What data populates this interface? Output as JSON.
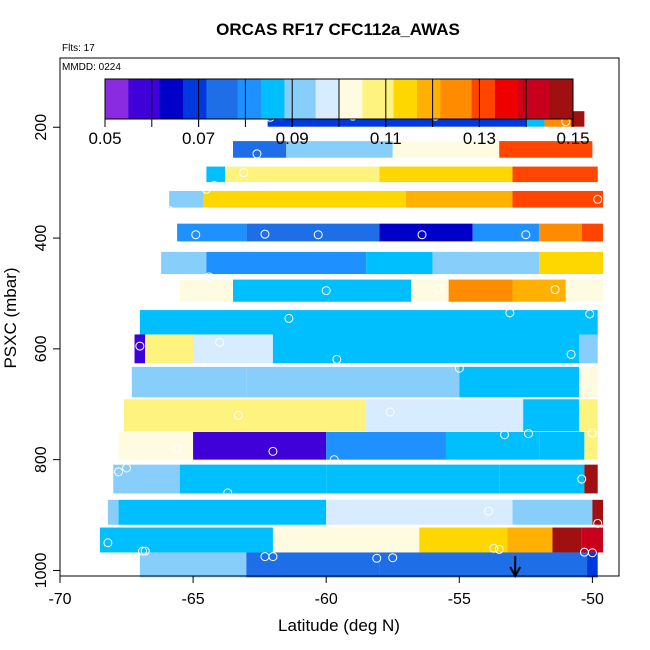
{
  "chart_data": {
    "type": "heatmap",
    "title": "ORCAS RF17 CFC112a_AWAS",
    "subtitle_flts": "Flts: 17",
    "subtitle_mmdd": "MMDD: 0224",
    "xlabel": "Latitude (deg N)",
    "ylabel": "PSXC (mbar)",
    "xlim": [
      -70,
      -49
    ],
    "ylim": [
      1010,
      75
    ],
    "y_reversed": true,
    "x_ticks": [
      -70,
      -65,
      -60,
      -55,
      -50
    ],
    "x_tick_labels": [
      "-70",
      "-65",
      "-60",
      "-55",
      "-50"
    ],
    "y_ticks": [
      200,
      400,
      600,
      800,
      1000
    ],
    "y_tick_labels": [
      "200",
      "400",
      "600",
      "800",
      "1000"
    ],
    "colorbar": {
      "min": 0.05,
      "max": 0.15,
      "ticks": [
        0.05,
        0.07,
        0.09,
        0.11,
        0.13,
        0.15
      ],
      "tick_labels": [
        "0.05",
        "0.07",
        "0.09",
        "0.11",
        "0.13",
        "0.15"
      ],
      "colors": [
        "#8a2be2",
        "#4000d8",
        "#0000c8",
        "#0038e0",
        "#1e6ee8",
        "#1e90ff",
        "#00bfff",
        "#87cefa",
        "#d8ecff",
        "#fffbe0",
        "#fff380",
        "#ffd700",
        "#ffb000",
        "#ff8c00",
        "#ff4500",
        "#ee0000",
        "#c8001e",
        "#a01010"
      ]
    },
    "arrow_marker": {
      "x": -52.9,
      "label": "↓"
    },
    "bands": [
      {
        "p": 185,
        "h": 28,
        "segments": [
          [
            -62.2,
            -52.5,
            0.069
          ],
          [
            -52.5,
            -51.8,
            0.088
          ],
          [
            -51.8,
            -50.8,
            0.125
          ],
          [
            -50.8,
            -50.3,
            0.145
          ]
        ]
      },
      {
        "p": 240,
        "h": 30,
        "segments": [
          [
            -63.5,
            -61.5,
            0.075
          ],
          [
            -61.5,
            -57.5,
            0.093
          ],
          [
            -57.5,
            -53.5,
            0.105
          ],
          [
            -53.5,
            -50.0,
            0.133
          ]
        ]
      },
      {
        "p": 285,
        "h": 28,
        "segments": [
          [
            -64.5,
            -63.8,
            0.088
          ],
          [
            -63.8,
            -58.0,
            0.108
          ],
          [
            -58.0,
            -53.0,
            0.113
          ],
          [
            -53.0,
            -49.8,
            0.13
          ]
        ]
      },
      {
        "p": 330,
        "h": 30,
        "segments": [
          [
            -65.9,
            -64.6,
            0.09
          ],
          [
            -64.6,
            -57.0,
            0.116
          ],
          [
            -57.0,
            -53.0,
            0.12
          ],
          [
            -53.0,
            -49.6,
            0.132
          ]
        ]
      },
      {
        "p": 390,
        "h": 32,
        "segments": [
          [
            -65.6,
            -63.0,
            0.082
          ],
          [
            -63.0,
            -58.0,
            0.074
          ],
          [
            -58.0,
            -54.5,
            0.066
          ],
          [
            -54.5,
            -52.0,
            0.082
          ],
          [
            -52.0,
            -50.4,
            0.126
          ],
          [
            -50.4,
            -49.6,
            0.13
          ]
        ]
      },
      {
        "p": 445,
        "h": 40,
        "segments": [
          [
            -66.2,
            -64.5,
            0.094
          ],
          [
            -64.5,
            -58.5,
            0.078
          ],
          [
            -58.5,
            -56.0,
            0.087
          ],
          [
            -56.0,
            -52.0,
            0.094
          ],
          [
            -52.0,
            -49.6,
            0.112
          ]
        ]
      },
      {
        "p": 495,
        "h": 40,
        "segments": [
          [
            -65.5,
            -63.5,
            0.105
          ],
          [
            -63.5,
            -56.8,
            0.085
          ],
          [
            -56.8,
            -55.4,
            0.1
          ],
          [
            -55.4,
            -53.0,
            0.127
          ],
          [
            -53.0,
            -51.0,
            0.12
          ],
          [
            -51.0,
            -49.6,
            0.1
          ]
        ]
      },
      {
        "p": 555,
        "h": 50,
        "segments": [
          [
            -67.0,
            -49.8,
            0.085
          ]
        ]
      },
      {
        "p": 600,
        "h": 52,
        "segments": [
          [
            -67.2,
            -66.8,
            0.06
          ],
          [
            -66.8,
            -65.0,
            0.11
          ],
          [
            -65.0,
            -62.0,
            0.095
          ],
          [
            -62.0,
            -50.5,
            0.085
          ],
          [
            -50.5,
            -49.8,
            0.092
          ]
        ]
      },
      {
        "p": 660,
        "h": 55,
        "segments": [
          [
            -67.3,
            -63.0,
            0.09
          ],
          [
            -63.0,
            -55.0,
            0.094
          ],
          [
            -55.0,
            -50.5,
            0.085
          ],
          [
            -50.5,
            -49.8,
            0.1
          ]
        ]
      },
      {
        "p": 720,
        "h": 58,
        "segments": [
          [
            -67.6,
            -58.5,
            0.11
          ],
          [
            -58.5,
            -52.6,
            0.098
          ],
          [
            -52.6,
            -50.5,
            0.085
          ],
          [
            -50.5,
            -49.8,
            0.11
          ]
        ]
      },
      {
        "p": 775,
        "h": 50,
        "segments": [
          [
            -67.8,
            -65.0,
            0.1
          ],
          [
            -65.0,
            -60.0,
            0.06
          ],
          [
            -60.0,
            -55.5,
            0.08
          ],
          [
            -55.5,
            -52.0,
            0.085
          ],
          [
            -52.0,
            -50.3,
            0.085
          ],
          [
            -50.3,
            -49.8,
            0.11
          ]
        ]
      },
      {
        "p": 835,
        "h": 52,
        "segments": [
          [
            -68.0,
            -65.5,
            0.092
          ],
          [
            -65.5,
            -60.0,
            0.084
          ],
          [
            -60.0,
            -53.5,
            0.086
          ],
          [
            -53.5,
            -50.3,
            0.085
          ],
          [
            -50.3,
            -49.8,
            0.145
          ]
        ]
      },
      {
        "p": 895,
        "h": 45,
        "segments": [
          [
            -68.2,
            -67.8,
            0.09
          ],
          [
            -67.8,
            -60.0,
            0.085
          ],
          [
            -60.0,
            -53.0,
            0.095
          ],
          [
            -53.0,
            -50.0,
            0.09
          ],
          [
            -50.0,
            -49.6,
            0.145
          ]
        ]
      },
      {
        "p": 945,
        "h": 45,
        "segments": [
          [
            -68.5,
            -62.0,
            0.086
          ],
          [
            -62.0,
            -56.5,
            0.102
          ],
          [
            -56.5,
            -53.2,
            0.116
          ],
          [
            -53.2,
            -51.5,
            0.12
          ],
          [
            -51.5,
            -50.4,
            0.145
          ],
          [
            -50.4,
            -49.6,
            0.14
          ]
        ]
      },
      {
        "p": 990,
        "h": 45,
        "segments": [
          [
            -67.0,
            -63.0,
            0.09
          ],
          [
            -63.0,
            -58.0,
            0.077
          ],
          [
            -58.0,
            -53.0,
            0.074
          ],
          [
            -53.0,
            -50.2,
            0.075
          ],
          [
            -50.2,
            -49.8,
            0.07
          ]
        ]
      }
    ],
    "points": [
      [
        -62.1,
        182
      ],
      [
        -59.0,
        180
      ],
      [
        -55.9,
        180
      ],
      [
        -51.0,
        190
      ],
      [
        -62.6,
        248
      ],
      [
        -63.1,
        282
      ],
      [
        -65.9,
        350
      ],
      [
        -64.5,
        312
      ],
      [
        -64.2,
        305
      ],
      [
        -49.8,
        330
      ],
      [
        -62.3,
        393
      ],
      [
        -64.9,
        394
      ],
      [
        -60.3,
        394
      ],
      [
        -56.4,
        394
      ],
      [
        -52.5,
        394
      ],
      [
        -65.4,
        415
      ],
      [
        -64.4,
        470
      ],
      [
        -60.0,
        495
      ],
      [
        -55.8,
        492
      ],
      [
        -51.4,
        493
      ],
      [
        -61.4,
        545
      ],
      [
        -53.1,
        535
      ],
      [
        -50.1,
        537
      ],
      [
        -67.0,
        595
      ],
      [
        -64.0,
        588
      ],
      [
        -50.8,
        610
      ],
      [
        -59.6,
        619
      ],
      [
        -55.0,
        635
      ],
      [
        -63.3,
        720
      ],
      [
        -57.6,
        714
      ],
      [
        -53.3,
        755
      ],
      [
        -52.4,
        753
      ],
      [
        -50.0,
        752
      ],
      [
        -65.6,
        780
      ],
      [
        -62.0,
        785
      ],
      [
        -59.7,
        800
      ],
      [
        -67.5,
        815
      ],
      [
        -67.8,
        822
      ],
      [
        -63.7,
        860
      ],
      [
        -50.4,
        835
      ],
      [
        -53.9,
        893
      ],
      [
        -49.8,
        915
      ],
      [
        -68.2,
        950
      ],
      [
        -66.8,
        965
      ],
      [
        -66.9,
        965
      ],
      [
        -62.3,
        975
      ],
      [
        -62.0,
        975
      ],
      [
        -58.1,
        978
      ],
      [
        -57.5,
        977
      ],
      [
        -53.7,
        960
      ],
      [
        -53.5,
        962
      ],
      [
        -50.3,
        967
      ],
      [
        -50.0,
        968
      ]
    ]
  }
}
